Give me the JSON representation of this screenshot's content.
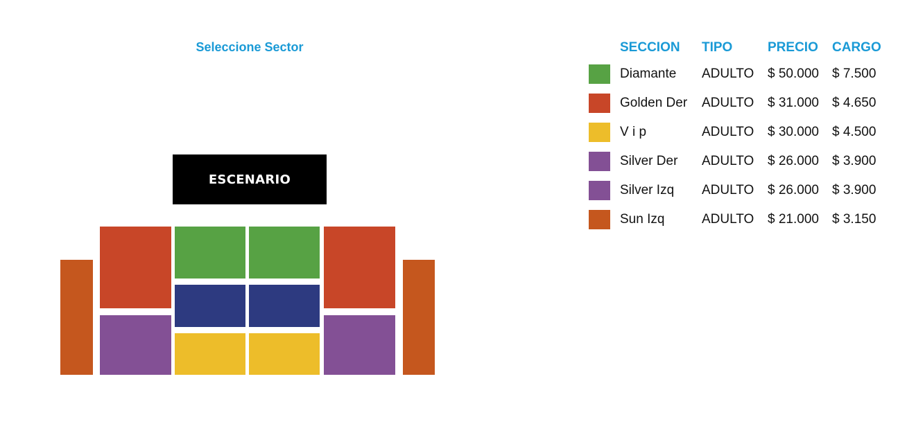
{
  "map": {
    "title": "Seleccione Sector",
    "stage_label": "ESCENARIO"
  },
  "colors": {
    "title_blue": "#1a9ad6",
    "diamante": "#57a244",
    "golden": "#c84628",
    "vip": "#edbd2a",
    "silver": "#835095",
    "sun": "#c5571e",
    "navy_block": "#2d3a80",
    "stage": "#000000"
  },
  "legend": {
    "headers": {
      "seccion": "SECCION",
      "tipo": "TIPO",
      "precio": "PRECIO",
      "cargo": "CARGO"
    },
    "rows": [
      {
        "seccion": "Diamante",
        "tipo": "ADULTO",
        "precio": "$ 50.000",
        "cargo": "$ 7.500",
        "color": "#57a244"
      },
      {
        "seccion": "Golden Der",
        "tipo": "ADULTO",
        "precio": "$ 31.000",
        "cargo": "$ 4.650",
        "color": "#c84628"
      },
      {
        "seccion": "V i p",
        "tipo": "ADULTO",
        "precio": "$ 30.000",
        "cargo": "$ 4.500",
        "color": "#edbd2a"
      },
      {
        "seccion": "Silver Der",
        "tipo": "ADULTO",
        "precio": "$ 26.000",
        "cargo": "$ 3.900",
        "color": "#835095"
      },
      {
        "seccion": "Silver Izq",
        "tipo": "ADULTO",
        "precio": "$ 26.000",
        "cargo": "$ 3.900",
        "color": "#835095"
      },
      {
        "seccion": "Sun Izq",
        "tipo": "ADULTO",
        "precio": "$ 21.000",
        "cargo": "$ 3.150",
        "color": "#c5571e"
      }
    ]
  }
}
